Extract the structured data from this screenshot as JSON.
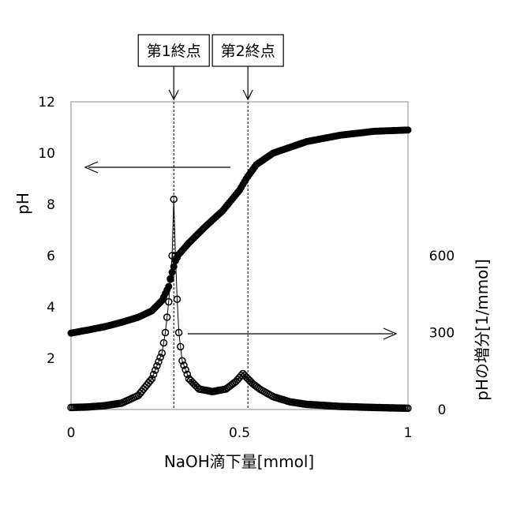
{
  "chart_data": {
    "type": "scatter",
    "title": "",
    "xlabel": "NaOH滴下量[mmol]",
    "ylabel_left": "pH",
    "ylabel_right": "pHの増分[1/mmol]",
    "xlim": [
      0,
      1
    ],
    "ylim_left": [
      0,
      12
    ],
    "ylim_right": [
      0,
      1200
    ],
    "x_ticks": [
      "0",
      "0.5",
      "1"
    ],
    "y_ticks_left": [
      "2",
      "4",
      "6",
      "8",
      "10",
      "12"
    ],
    "y_ticks_right": [
      "0",
      "300",
      "600"
    ],
    "grid": false,
    "endpoints": [
      {
        "label": "第1終点",
        "x": 0.305
      },
      {
        "label": "第2終点",
        "x": 0.525
      }
    ],
    "series": [
      {
        "axis": "left",
        "style": "filled",
        "x": [
          0.0,
          0.05,
          0.1,
          0.15,
          0.2,
          0.24,
          0.27,
          0.29,
          0.3,
          0.31,
          0.32,
          0.35,
          0.4,
          0.45,
          0.5,
          0.52,
          0.55,
          0.6,
          0.7,
          0.8,
          0.9,
          1.0
        ],
        "y": [
          2.98,
          3.1,
          3.23,
          3.4,
          3.6,
          3.85,
          4.25,
          4.8,
          5.35,
          5.8,
          6.05,
          6.5,
          7.15,
          7.75,
          8.55,
          9.0,
          9.55,
          10.0,
          10.45,
          10.7,
          10.85,
          10.9
        ]
      },
      {
        "axis": "right",
        "style": "open",
        "x": [
          0.0,
          0.05,
          0.1,
          0.15,
          0.2,
          0.24,
          0.27,
          0.28,
          0.29,
          0.3,
          0.305,
          0.31,
          0.315,
          0.32,
          0.33,
          0.35,
          0.38,
          0.42,
          0.46,
          0.49,
          0.51,
          0.525,
          0.54,
          0.56,
          0.6,
          0.65,
          0.7,
          0.8,
          0.9,
          1.0
        ],
        "y": [
          8,
          10,
          15,
          25,
          55,
          120,
          220,
          300,
          420,
          600,
          820,
          600,
          430,
          300,
          190,
          120,
          80,
          70,
          80,
          110,
          140,
          120,
          100,
          80,
          50,
          30,
          20,
          12,
          8,
          5
        ]
      }
    ]
  }
}
